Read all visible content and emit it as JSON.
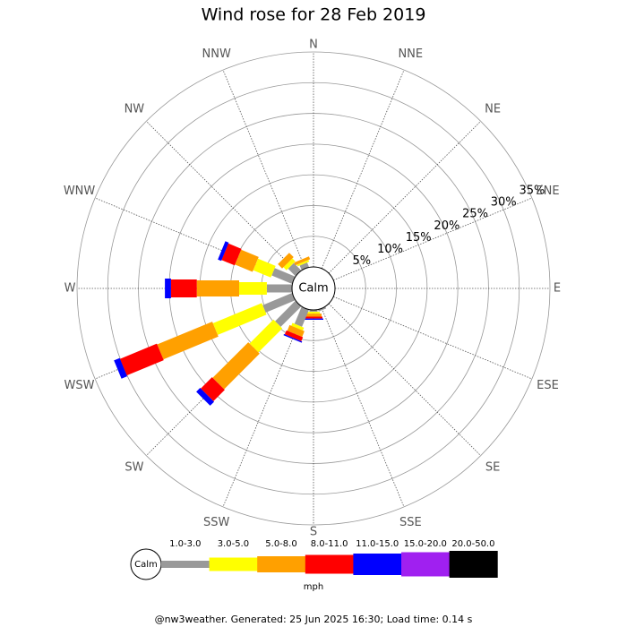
{
  "chart_data": {
    "type": "wind-rose",
    "title": "Wind rose for 28 Feb 2019",
    "directions": [
      "N",
      "NNE",
      "NE",
      "ENE",
      "E",
      "ESE",
      "SE",
      "SSE",
      "S",
      "SSW",
      "SW",
      "WSW",
      "W",
      "WNW",
      "NW",
      "NNW"
    ],
    "series": [
      {
        "name": "1.0-3.0",
        "color": "#999999",
        "values": [
          0,
          0,
          0,
          0,
          0,
          0,
          0,
          0.3,
          0.3,
          3.0,
          4.7,
          5.2,
          4.1,
          3.6,
          1.7,
          0.8
        ]
      },
      {
        "name": "3.0-5.0",
        "color": "#ffff00",
        "values": [
          0,
          0,
          0,
          0,
          0,
          0,
          0,
          0,
          0.3,
          0.5,
          5.5,
          8.6,
          4.5,
          3.1,
          0.7,
          0.3
        ]
      },
      {
        "name": "5.0-8.0",
        "color": "#ffa000",
        "values": [
          0,
          0,
          0,
          0,
          0,
          0,
          0,
          0,
          0.5,
          1.0,
          8.2,
          9.7,
          6.9,
          3.1,
          1.0,
          0.5
        ]
      },
      {
        "name": "8.0-11.0",
        "color": "#ff0000",
        "values": [
          0,
          0,
          0,
          0,
          0,
          0,
          0,
          0,
          0.3,
          0.7,
          2.6,
          6.5,
          4.2,
          2.3,
          0,
          0
        ]
      },
      {
        "name": "11.0-15.0",
        "color": "#0000ff",
        "values": [
          0,
          0,
          0,
          0,
          0,
          0,
          0,
          0,
          0.2,
          0.2,
          0.9,
          1.0,
          1.0,
          0.6,
          0,
          0
        ]
      },
      {
        "name": "15.0-20.0",
        "color": "#a020f0",
        "values": [
          0,
          0,
          0,
          0,
          0,
          0,
          0,
          0,
          0,
          0,
          0,
          0,
          0,
          0,
          0,
          0
        ]
      },
      {
        "name": "20.0-50.0",
        "color": "#000000",
        "values": [
          0,
          0,
          0,
          0,
          0,
          0,
          0,
          0,
          0,
          0,
          0,
          0,
          0,
          0,
          0,
          0
        ]
      }
    ],
    "rlim": [
      0,
      35
    ],
    "rticks": [
      {
        "value": 5,
        "label": "5%"
      },
      {
        "value": 10,
        "label": "10%"
      },
      {
        "value": 15,
        "label": "15%"
      },
      {
        "value": 20,
        "label": "20%"
      },
      {
        "value": 25,
        "label": "25%"
      },
      {
        "value": 30,
        "label": "30%"
      },
      {
        "value": 35,
        "label": "35%"
      }
    ],
    "calm_label": "Calm",
    "unit": "mph"
  },
  "footer": "@nw3weather. Generated: 25 Jun 2025 16:30; Load time: 0.14 s"
}
